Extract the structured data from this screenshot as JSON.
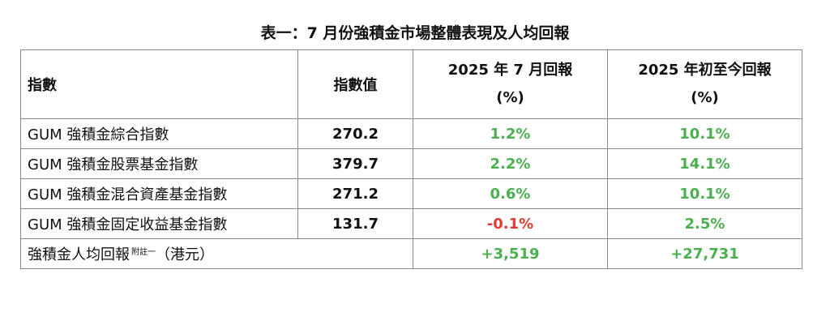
{
  "title": "表一：7 月份強積金市場整體表現及人均回報",
  "header": {
    "col_index": "指數",
    "col_value": "指數值",
    "col_month_line1": "2025 年 7 月回報",
    "col_month_line2": "(%)",
    "col_ytd_line1": "2025 年初至今回報",
    "col_ytd_line2": "(%)"
  },
  "rows": [
    {
      "name": "GUM 強積金綜合指數",
      "value": "270.2",
      "month": "1.2%",
      "ytd": "10.1%"
    },
    {
      "name": "GUM 強積金股票基金指數",
      "value": "379.7",
      "month": "2.2%",
      "ytd": "14.1%"
    },
    {
      "name": "GUM 強積金混合資產基金指數",
      "value": "271.2",
      "month": "0.6%",
      "ytd": "10.1%"
    },
    {
      "name": "GUM 強積金固定收益基金指數",
      "value": "131.7",
      "month": "-0.1%",
      "ytd": "2.5%"
    }
  ],
  "per_capita": {
    "label": "強積金人均回報",
    "note": "附註一",
    "unit": "（港元）",
    "month": "+3,519",
    "ytd": "+27,731"
  },
  "colors": {
    "positive": "#4caf50",
    "negative": "#e53935",
    "border": "#8a8a8a"
  }
}
